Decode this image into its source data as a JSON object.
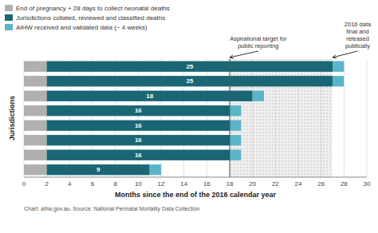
{
  "chart_data": {
    "type": "bar",
    "orientation": "horizontal",
    "stacked": true,
    "categories": [
      null,
      null,
      null,
      null,
      null,
      null,
      null,
      null
    ],
    "series": [
      {
        "name": "End of pregnancy + 28 days to collect neonatal deaths",
        "color": "#b0b0b0",
        "values": [
          2,
          2,
          2,
          2,
          2,
          2,
          2,
          2
        ]
      },
      {
        "name": "Jurisdictions collated, reviewed and classified deaths",
        "color": "#1a6675",
        "values": [
          25,
          25,
          18,
          16,
          16,
          16,
          16,
          9
        ],
        "data_labels": true
      },
      {
        "name": "AIHW received and validated data (~ 4 weeks)",
        "color": "#5ab5c8",
        "values": [
          1,
          1,
          1,
          1,
          1,
          1,
          1,
          1
        ]
      }
    ],
    "xlim": [
      0,
      30
    ],
    "xticks": [
      0,
      2,
      4,
      6,
      8,
      10,
      12,
      14,
      16,
      18,
      20,
      22,
      24,
      26,
      28,
      30
    ],
    "xlabel": "Months since the end of the 2016 calendar year",
    "ylabel": "Jurisdictions",
    "grid": true,
    "legend": "upper left",
    "tick_labels": "x",
    "shaded_range": [
      18,
      27
    ],
    "annotations": [
      {
        "text": "Aspirational target for\npublic reporting",
        "x": 18
      },
      {
        "text": "2016 data\nfinal and\nreleased\npublically",
        "x": 27
      }
    ],
    "footer": "Chart: aihw.gov.au. Source: National Perinatal Mortality Data Collection"
  }
}
